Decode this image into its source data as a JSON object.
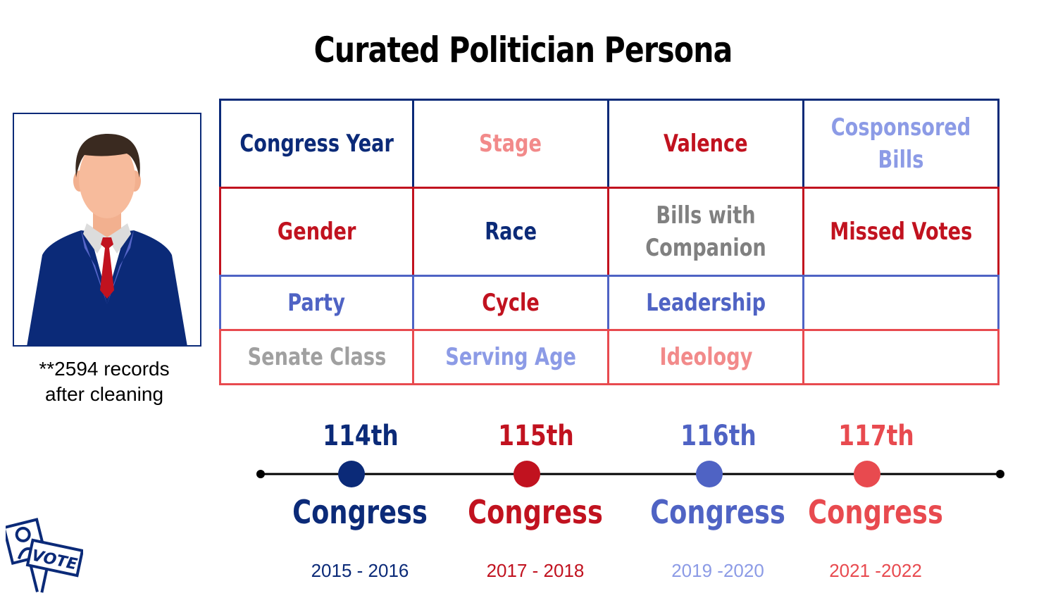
{
  "title": "Curated Politician Persona",
  "records_note": {
    "line1": "**2594 records",
    "line2": "after cleaning"
  },
  "colors": {
    "navy": "#0b2a78",
    "red": "#c1121f",
    "periwinkle": "#8c9be6",
    "pink": "#f28a8a",
    "gray": "#808080",
    "mid_blue": "#4f63c4",
    "coral": "#e84a4f"
  },
  "grid": {
    "rows": [
      {
        "border": "#0b2a78",
        "cells": [
          {
            "label": "Congress Year",
            "color": "#0b2a78"
          },
          {
            "label": "Stage",
            "color": "#f28a8a"
          },
          {
            "label": "Valence",
            "color": "#c1121f"
          },
          {
            "label": "Cosponsored Bills",
            "color": "#8c9be6"
          }
        ]
      },
      {
        "border": "#c1121f",
        "cells": [
          {
            "label": "Gender",
            "color": "#c1121f"
          },
          {
            "label": "Race",
            "color": "#0b2a78"
          },
          {
            "label": "Bills with Companion",
            "color": "#808080"
          },
          {
            "label": "Missed Votes",
            "color": "#c1121f"
          }
        ]
      },
      {
        "border": "#4f63c4",
        "cells": [
          {
            "label": "Party",
            "color": "#4f63c4"
          },
          {
            "label": "Cycle",
            "color": "#c1121f"
          },
          {
            "label": "Leadership",
            "color": "#4f63c4"
          },
          {
            "label": "",
            "color": "#4f63c4"
          }
        ]
      },
      {
        "border": "#e84a4f",
        "cells": [
          {
            "label": "Senate Class",
            "color": "#a0a0a0"
          },
          {
            "label": "Serving Age",
            "color": "#8c9be6"
          },
          {
            "label": "Ideology",
            "color": "#f28a8a"
          },
          {
            "label": "",
            "color": "#e84a4f"
          }
        ]
      }
    ]
  },
  "timeline": [
    {
      "number": "114th",
      "word": "Congress",
      "years": "2015 - 2016",
      "color": "#0b2a78",
      "year_color": "#0b2a78"
    },
    {
      "number": "115th",
      "word": "Congress",
      "years": "2017 - 2018",
      "color": "#c1121f",
      "year_color": "#c1121f"
    },
    {
      "number": "116th",
      "word": "Congress",
      "years": "2019 -2020",
      "color": "#4f63c4",
      "year_color": "#8c9be6"
    },
    {
      "number": "117th",
      "word": "Congress",
      "years": "2021 -2022",
      "color": "#e84a4f",
      "year_color": "#e84a4f"
    }
  ],
  "vote_sign": {
    "text": "VOTE",
    "icon": "vote-sign-icon"
  },
  "portrait": {
    "icon": "politician-avatar-icon"
  }
}
